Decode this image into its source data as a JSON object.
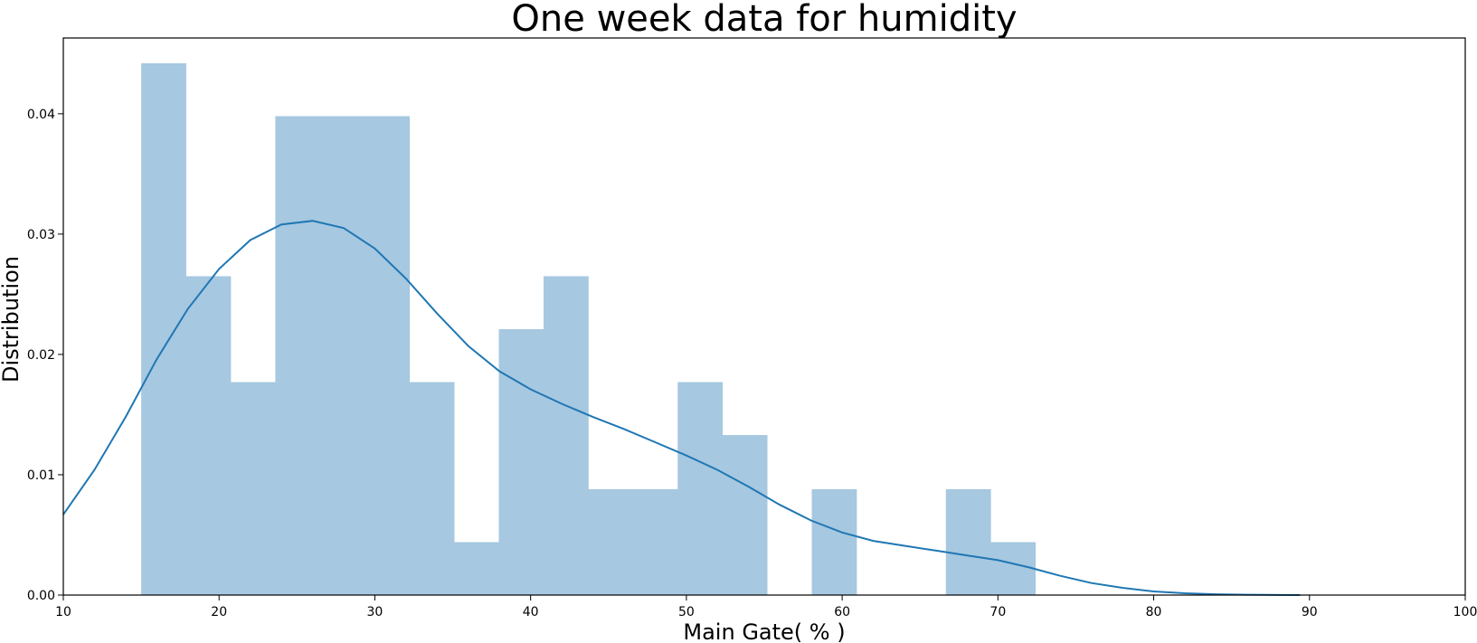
{
  "chart_data": {
    "type": "bar",
    "title": "One week data for humidity",
    "xlabel": "Main Gate( % )",
    "ylabel": "Distribution",
    "xlim": [
      10,
      100
    ],
    "ylim": [
      0,
      0.0463
    ],
    "xticks": [
      10,
      20,
      30,
      40,
      50,
      60,
      70,
      80,
      90,
      100
    ],
    "yticks": [
      0.0,
      0.01,
      0.02,
      0.03,
      0.04
    ],
    "xtick_labels": [
      "10",
      "20",
      "30",
      "40",
      "50",
      "60",
      "70",
      "80",
      "90",
      "100"
    ],
    "ytick_labels": [
      "0.00",
      "0.01",
      "0.02",
      "0.03",
      "0.04"
    ],
    "grid": false,
    "bar_color": "#a6c8e0",
    "line_color": "#1f77b4",
    "histogram": {
      "bin_edges": [
        15.0,
        17.87,
        20.74,
        23.61,
        26.48,
        29.35,
        32.22,
        35.09,
        37.96,
        40.83,
        43.7,
        46.57,
        49.44,
        52.31,
        55.18,
        58.05,
        60.92,
        63.79,
        66.66,
        69.53,
        72.4
      ],
      "values": [
        0.0442,
        0.0265,
        0.0177,
        0.0398,
        0.0398,
        0.0398,
        0.0177,
        0.0044,
        0.0221,
        0.0265,
        0.0088,
        0.0088,
        0.0177,
        0.0133,
        0.0,
        0.0088,
        0.0,
        0.0,
        0.0088,
        0.0044
      ]
    },
    "kde": {
      "x": [
        10,
        12,
        14,
        16,
        18,
        20,
        22,
        24,
        26,
        28,
        30,
        32,
        34,
        36,
        38,
        40,
        42,
        44,
        46,
        48,
        50,
        52,
        54,
        56,
        58,
        60,
        62,
        64,
        66,
        68,
        70,
        72,
        74,
        76,
        78,
        80,
        82,
        84,
        86,
        88,
        89.4
      ],
      "y": [
        0.0067,
        0.0104,
        0.0148,
        0.0196,
        0.0238,
        0.0271,
        0.0295,
        0.0308,
        0.0311,
        0.0305,
        0.0288,
        0.0263,
        0.0234,
        0.0207,
        0.0186,
        0.0171,
        0.0159,
        0.0148,
        0.0138,
        0.0127,
        0.0116,
        0.0104,
        0.009,
        0.0075,
        0.0062,
        0.0052,
        0.0045,
        0.0041,
        0.0037,
        0.0033,
        0.0029,
        0.0023,
        0.0016,
        0.001,
        0.0006,
        0.0003,
        0.00015,
        7e-05,
        3e-05,
        1e-05,
        0.0
      ]
    }
  }
}
